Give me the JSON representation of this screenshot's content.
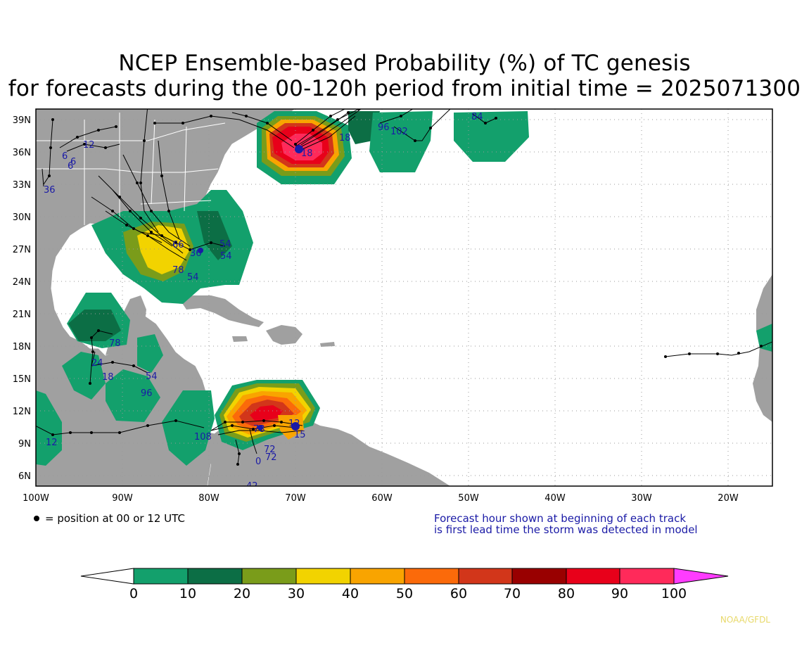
{
  "title": {
    "line1": "NCEP Ensemble-based Probability (%) of TC genesis",
    "line2": "for forecasts during the 00-120h period from initial time = 2025071300"
  },
  "map": {
    "lon_range": [
      -100,
      -15
    ],
    "lat_range": [
      5,
      40
    ],
    "lat_labels": [
      "39N",
      "36N",
      "33N",
      "30N",
      "27N",
      "24N",
      "21N",
      "18N",
      "15N",
      "12N",
      "9N",
      "6N"
    ],
    "lon_labels": [
      "100W",
      "90W",
      "80W",
      "70W",
      "60W",
      "50W",
      "40W",
      "30W",
      "20W"
    ],
    "land_color": "#a0a0a0",
    "ocean_color": "#ffffff",
    "track_labels": [
      "6",
      "6",
      "6",
      "12",
      "36",
      "18",
      "18",
      "96",
      "102",
      "84",
      "66",
      "54",
      "54",
      "54",
      "78",
      "24",
      "18",
      "78",
      "54",
      "96",
      "12",
      "108",
      "78",
      "72",
      "72",
      "0",
      "42",
      "12",
      "15",
      "36"
    ]
  },
  "legend": {
    "colorbar_labels": [
      "0",
      "10",
      "20",
      "30",
      "40",
      "50",
      "60",
      "70",
      "80",
      "90",
      "100"
    ],
    "colors": [
      "#ffffff",
      "#13a06c",
      "#0c6e45",
      "#7a9c1a",
      "#f2d300",
      "#f9a400",
      "#fb6a0a",
      "#d2361a",
      "#990000",
      "#e8001a",
      "#ff2a5a",
      "#ff3cff"
    ],
    "position_note": "= position at 00 or 12 UTC",
    "forecast_note_1": "Forecast hour shown at beginning of each track",
    "forecast_note_2": "is first lead time the storm was detected in model",
    "credit": "NOAA/GFDL"
  }
}
